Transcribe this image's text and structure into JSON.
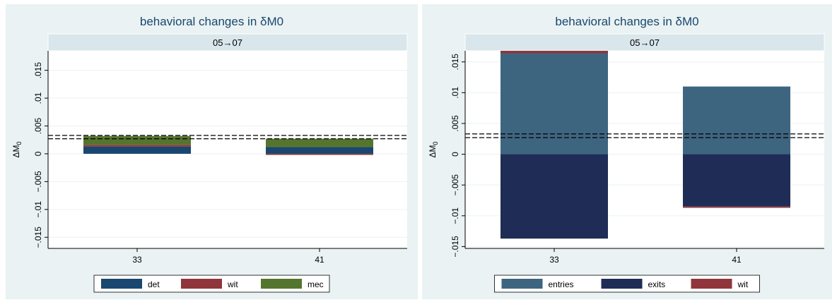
{
  "chart_data": [
    {
      "type": "bar",
      "stacked": true,
      "title": "behavioral changes in δM0",
      "subtitle": "05→07",
      "ylabel": "ΔM",
      "ylabel_subscript": "0",
      "categories": [
        "33",
        "41"
      ],
      "ylim": [
        -0.017,
        0.0185
      ],
      "yticks": [
        -0.015,
        -0.01,
        -0.005,
        0,
        0.005,
        0.01,
        0.015
      ],
      "ytick_labels": [
        "−.015",
        "−.01",
        "−.005",
        "0",
        ".005",
        ".01",
        ".015"
      ],
      "reference_lines": [
        0.0027,
        0.0033
      ],
      "grid": true,
      "legend": "bottom",
      "series": [
        {
          "name": "det",
          "color": "#1a476f",
          "values": [
            0.0013,
            0.0012
          ]
        },
        {
          "name": "wit",
          "color": "#90353b",
          "values": [
            0.0003,
            -0.0002
          ]
        },
        {
          "name": "mec",
          "color": "#55752f",
          "values": [
            0.0016,
            0.0015
          ]
        }
      ]
    },
    {
      "type": "bar",
      "stacked": true,
      "title": "behavioral changes in δM0",
      "subtitle": "05→07",
      "ylabel": "ΔM",
      "ylabel_subscript": "0",
      "categories": [
        "33",
        "41"
      ],
      "ylim": [
        -0.0153,
        0.0168
      ],
      "yticks": [
        -0.015,
        -0.01,
        -0.005,
        0,
        0.005,
        0.01,
        0.015
      ],
      "ytick_labels": [
        "−.015",
        "−.01",
        "−.005",
        "0",
        ".005",
        ".01",
        ".015"
      ],
      "reference_lines": [
        0.0027,
        0.0033
      ],
      "grid": true,
      "legend": "bottom",
      "series": [
        {
          "name": "entries",
          "color": "#3e6580",
          "values": [
            0.0164,
            0.011
          ]
        },
        {
          "name": "exits",
          "color": "#1f2d56",
          "values": [
            -0.0137,
            -0.0085
          ]
        },
        {
          "name": "wit",
          "color": "#90353b",
          "values": [
            0.0004,
            -0.0002
          ]
        }
      ]
    }
  ]
}
